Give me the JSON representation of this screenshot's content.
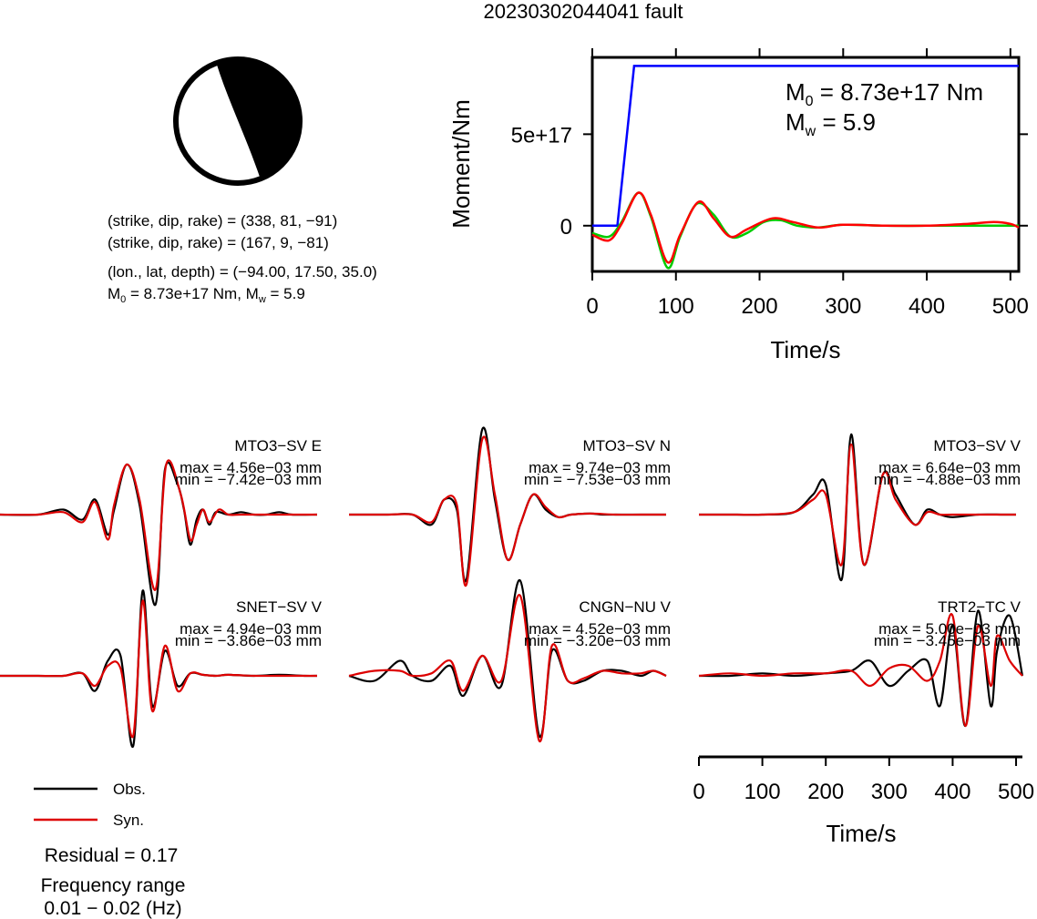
{
  "title": "20230302044041 fault",
  "beachball": {
    "line1": "(strike, dip, rake) = (338, 81, −91)",
    "line2": "(strike, dip, rake) = (167, 9, −81)",
    "line3": "(lon., lat, depth) = (−94.00, 17.50, 35.0)",
    "line4_m0": "M",
    "line4_m0_sub": "0",
    "line4_m0_rest": " = 8.73e+17 Nm, M",
    "line4_mw_sub": "w",
    "line4_mw_rest": " = 5.9"
  },
  "stf": {
    "ylabel": "Moment/Nm",
    "xlabel": "Time/s",
    "m0_label": "M",
    "m0_sub": "0",
    "m0_value": " = 8.73e+17 Nm",
    "mw_label": "M",
    "mw_sub": "w",
    "mw_value": " = 5.9",
    "colors": {
      "moment": "#0000ff",
      "obs": "#ff0000",
      "syn": "#00cc00"
    }
  },
  "waveforms": [
    {
      "station": "MTO3−SV E",
      "max": "max = 4.56e−03 mm",
      "min": "min = −7.42e−03 mm"
    },
    {
      "station": "MTO3−SV N",
      "max": "max = 9.74e−03 mm",
      "min": "min = −7.53e−03 mm"
    },
    {
      "station": "MTO3−SV V",
      "max": "max = 6.64e−03 mm",
      "min": "min = −4.88e−03 mm"
    },
    {
      "station": "SNET−SV V",
      "max": "max = 4.94e−03 mm",
      "min": "min = −3.86e−03 mm"
    },
    {
      "station": "CNGN−NU V",
      "max": "max = 4.52e−03 mm",
      "min": "min = −3.20e−03 mm"
    },
    {
      "station": "TRT2−TC V",
      "max": "max = 5.00e−03 mm",
      "min": "min = −3.45e−03 mm"
    }
  ],
  "time_axis": {
    "xlabel": "Time/s"
  },
  "legend": {
    "obs": "Obs.",
    "syn": "Syn."
  },
  "residual": "Residual = 0.17",
  "freq_label": "Frequency range",
  "freq_value": "0.01 − 0.02 (Hz)",
  "chart_data": [
    {
      "type": "line",
      "title": "",
      "xlabel": "Time/s",
      "ylabel": "Moment/Nm",
      "xlim": [
        0,
        510
      ],
      "ylim": [
        -2.5e+17,
        9.2e+17
      ],
      "xticks": [
        0,
        100,
        200,
        300,
        400,
        500
      ],
      "yticks": [
        {
          "value": 0,
          "label": "0"
        },
        {
          "value": 5e+17,
          "label": "5e+17"
        }
      ],
      "series": [
        {
          "color": "#0000ff",
          "x": [
            0,
            30,
            50,
            510
          ],
          "y": [
            0,
            0,
            8.73e+17,
            8.73e+17
          ]
        },
        {
          "color": "#00cc00",
          "x": [
            0,
            20,
            35,
            55,
            70,
            90,
            105,
            125,
            145,
            165,
            185,
            205,
            225,
            245,
            270,
            300,
            350,
            400,
            450,
            500,
            510
          ],
          "y": [
            -4e+16,
            -6e+16,
            2e+16,
            1.8e+17,
            5e+16,
            -2.3e+17,
            -6e+16,
            1.2e+17,
            6e+16,
            -6e+16,
            -4e+16,
            2e+16,
            3e+16,
            0,
            -1e+16,
            5000000000000000.0,
            0,
            0,
            0,
            0,
            0
          ]
        },
        {
          "color": "#ff0000",
          "x": [
            0,
            20,
            35,
            55,
            70,
            90,
            105,
            127,
            145,
            165,
            185,
            215,
            240,
            270,
            300,
            350,
            400,
            450,
            480,
            500,
            510
          ],
          "y": [
            -5e+16,
            -8e+16,
            1e+16,
            1.8e+17,
            6e+16,
            -2e+17,
            -5e+16,
            1.3e+17,
            4e+16,
            -6e+16,
            -2e+16,
            4e+16,
            2e+16,
            -1e+16,
            5000000000000000.0,
            0,
            0,
            1e+16,
            2e+16,
            1e+16,
            -1e+16
          ]
        }
      ]
    },
    {
      "type": "line",
      "title": "",
      "xlabel": "Time/s",
      "xlim": [
        0,
        510
      ],
      "xticks": [
        0,
        100,
        200,
        300,
        400,
        500
      ],
      "series": [
        {
          "name": "Obs.",
          "color": "#000000"
        },
        {
          "name": "Syn.",
          "color": "#dd0000"
        }
      ],
      "traces": [
        {
          "station": "MTO3−SV E",
          "obs": {
            "x": [
              0,
              60,
              100,
              130,
              150,
              170,
              180,
              200,
              220,
              245,
              260,
              280,
              290,
              300,
              310,
              320,
              330,
              340,
              360,
              380,
              400,
              420,
              440,
              460,
              500
            ],
            "y": [
              0,
              0,
              0.1,
              -0.1,
              0.3,
              -0.4,
              0.1,
              1.0,
              0.2,
              -1.8,
              0.9,
              0.6,
              0.1,
              -0.6,
              -0.1,
              0.1,
              -0.2,
              0.05,
              0,
              0.05,
              0,
              0,
              0.05,
              0,
              0
            ]
          },
          "syn": {
            "x": [
              0,
              60,
              100,
              130,
              150,
              170,
              180,
              200,
              220,
              245,
              262,
              285,
              300,
              310,
              320,
              330,
              345,
              360,
              380,
              400,
              440,
              500
            ],
            "y": [
              0,
              0,
              0.05,
              -0.15,
              0.25,
              -0.5,
              0.2,
              1.0,
              0.3,
              -1.5,
              1.0,
              0.4,
              -0.5,
              -0.2,
              0.1,
              -0.15,
              0.1,
              0,
              0,
              0,
              0,
              0
            ]
          }
        },
        {
          "station": "MTO3−SV N",
          "obs": {
            "x": [
              0,
              60,
              100,
              130,
              150,
              170,
              185,
              210,
              230,
              250,
              270,
              290,
              310,
              330,
              350,
              380,
              400,
              420,
              460,
              500
            ],
            "y": [
              0,
              0,
              0,
              -0.2,
              0.3,
              0.1,
              -1.3,
              1.7,
              0.3,
              -0.9,
              -0.2,
              0.4,
              0.1,
              -0.05,
              0,
              0.02,
              0,
              0,
              0,
              0
            ]
          },
          "syn": {
            "x": [
              0,
              60,
              100,
              130,
              150,
              170,
              185,
              210,
              230,
              250,
              270,
              290,
              310,
              330,
              350,
              380,
              420,
              460,
              500
            ],
            "y": [
              0,
              0,
              0,
              -0.15,
              0.3,
              0.2,
              -1.4,
              1.5,
              0.4,
              -0.9,
              -0.2,
              0.4,
              0.15,
              -0.05,
              0,
              0.02,
              0,
              0,
              0
            ]
          }
        },
        {
          "station": "MTO3−SV V",
          "obs": {
            "x": [
              0,
              60,
              100,
              150,
              180,
              200,
              225,
              240,
              260,
              290,
              310,
              340,
              360,
              380,
              400,
              440,
              480,
              500
            ],
            "y": [
              0,
              0,
              0,
              0.05,
              0.4,
              0.6,
              -1.3,
              1.6,
              -1.0,
              0.8,
              0.4,
              -0.2,
              0.1,
              0,
              -0.05,
              0,
              0,
              0
            ]
          },
          "syn": {
            "x": [
              0,
              60,
              100,
              150,
              180,
              200,
              225,
              240,
              260,
              290,
              310,
              340,
              360,
              380,
              400,
              440,
              480,
              500
            ],
            "y": [
              0,
              0,
              0,
              0.05,
              0.3,
              0.4,
              -1.0,
              1.4,
              -1.0,
              0.8,
              0.3,
              -0.2,
              0.05,
              0,
              0,
              0,
              0,
              0
            ]
          }
        },
        {
          "station": "SNET−SV V",
          "obs": {
            "x": [
              0,
              60,
              100,
              130,
              150,
              170,
              190,
              210,
              225,
              240,
              260,
              280,
              300,
              320,
              340,
              360,
              400,
              440,
              480,
              500
            ],
            "y": [
              0,
              0,
              0,
              0.05,
              -0.3,
              0.3,
              0.4,
              -1.4,
              1.7,
              -0.6,
              0.5,
              -0.2,
              0.05,
              0.02,
              0,
              0.02,
              0,
              0.02,
              0,
              0
            ]
          },
          "syn": {
            "x": [
              0,
              60,
              100,
              130,
              150,
              170,
              190,
              210,
              225,
              240,
              260,
              280,
              300,
              320,
              340,
              360,
              400,
              440,
              480,
              500
            ],
            "y": [
              0,
              0,
              0,
              0.05,
              -0.2,
              0.2,
              0.15,
              -1.2,
              1.5,
              -0.7,
              0.6,
              -0.3,
              0.05,
              0.02,
              0,
              0.02,
              0,
              0,
              0,
              0
            ]
          }
        },
        {
          "station": "CNGN−NU V",
          "obs": {
            "x": [
              0,
              40,
              80,
              100,
              130,
              160,
              180,
              210,
              240,
              270,
              300,
              320,
              345,
              370,
              400,
              430,
              460,
              480,
              500
            ],
            "y": [
              0,
              -0.1,
              0.3,
              0,
              -0.1,
              0.2,
              -0.4,
              0.4,
              -0.2,
              1.9,
              -1.2,
              0.5,
              -0.1,
              -0.1,
              0.1,
              0.1,
              0,
              0.1,
              0
            ]
          },
          "syn": {
            "x": [
              0,
              40,
              80,
              100,
              130,
              160,
              180,
              210,
              240,
              270,
              300,
              320,
              345,
              370,
              400,
              430,
              460,
              480,
              500
            ],
            "y": [
              0,
              0.1,
              0.1,
              0,
              0.05,
              0.3,
              -0.3,
              0.4,
              -0.1,
              1.6,
              -1.3,
              0.6,
              -0.1,
              -0.05,
              0.1,
              0.05,
              0.05,
              0.1,
              0
            ]
          }
        },
        {
          "station": "TRT2−TC V",
          "obs": {
            "x": [
              0,
              50,
              100,
              150,
              200,
              240,
              270,
              300,
              330,
              360,
              380,
              400,
              420,
              440,
              460,
              470,
              490,
              510
            ],
            "y": [
              0,
              0,
              0.05,
              0,
              0.05,
              0.1,
              0.3,
              -0.2,
              0.1,
              0.3,
              -0.6,
              1.0,
              -1.0,
              1.3,
              -0.6,
              0.5,
              1.2,
              0
            ]
          },
          "syn": {
            "x": [
              0,
              50,
              100,
              150,
              200,
              240,
              270,
              300,
              330,
              360,
              380,
              400,
              420,
              440,
              460,
              470,
              490,
              510
            ],
            "y": [
              0,
              0.05,
              0,
              0.05,
              0.05,
              0.1,
              -0.2,
              0.15,
              0.2,
              -0.1,
              0.3,
              1.2,
              -1.0,
              1.0,
              -0.2,
              0.8,
              0.3,
              0
            ]
          }
        }
      ]
    }
  ]
}
